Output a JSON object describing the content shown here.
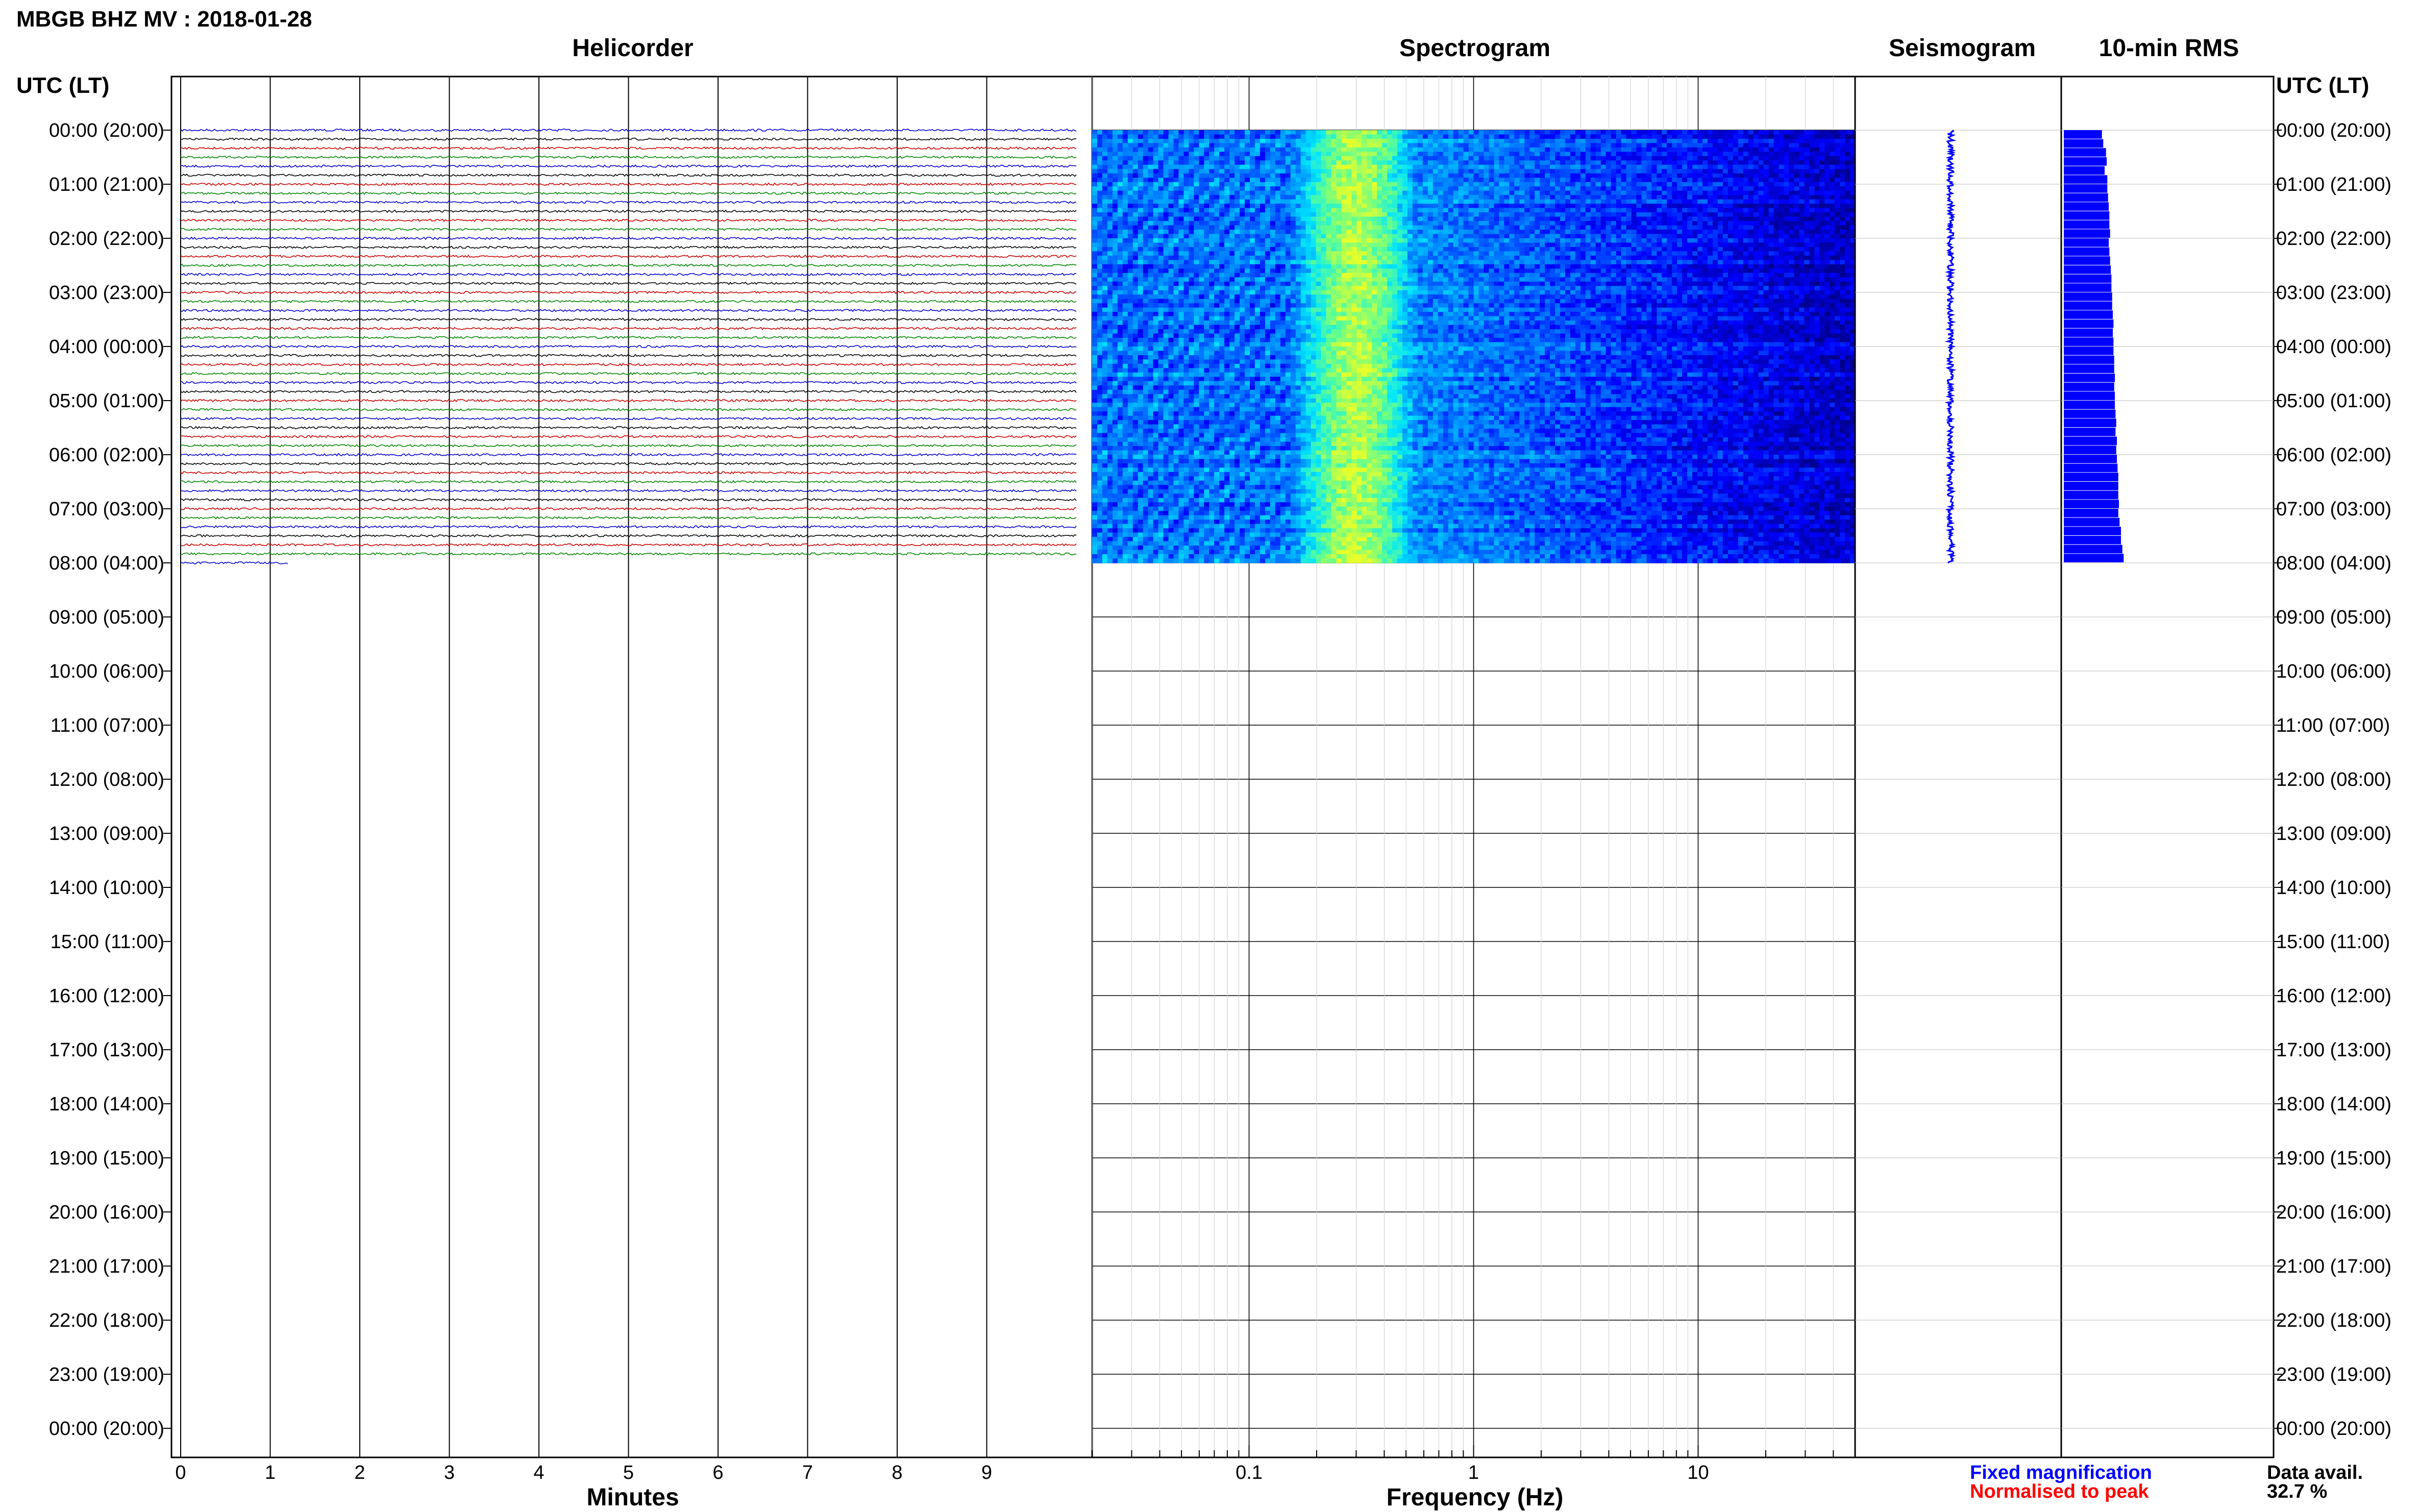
{
  "title": "MBGB BHZ MV : 2018-01-28",
  "chart_data": [
    {
      "type": "line",
      "panel": "helicorder",
      "title": "Helicorder",
      "xlabel": "Minutes",
      "x_ticks": [
        "0",
        "1",
        "2",
        "3",
        "4",
        "5",
        "6",
        "7",
        "8",
        "9"
      ],
      "xlim": [
        0,
        10
      ],
      "left_axis_label": "UTC (LT)",
      "right_axis_label": "UTC (LT)",
      "hour_labels": [
        "00:00 (20:00)",
        "01:00 (21:00)",
        "02:00 (22:00)",
        "03:00 (23:00)",
        "04:00 (00:00)",
        "05:00 (01:00)",
        "06:00 (02:00)",
        "07:00 (03:00)",
        "08:00 (04:00)",
        "09:00 (05:00)",
        "10:00 (06:00)",
        "11:00 (07:00)",
        "12:00 (08:00)",
        "13:00 (09:00)",
        "14:00 (10:00)",
        "15:00 (11:00)",
        "16:00 (12:00)",
        "17:00 (13:00)",
        "18:00 (14:00)",
        "19:00 (15:00)",
        "20:00 (16:00)",
        "21:00 (17:00)",
        "22:00 (18:00)",
        "23:00 (19:00)",
        "00:00 (20:00)"
      ],
      "trace_rows_per_hour": 6,
      "full_trace_rows": 48,
      "last_partial_trace_minutes": 1.2,
      "trace_colors": [
        "#000000",
        "#cc0000",
        "#008800",
        "#0000cc"
      ]
    },
    {
      "type": "heatmap",
      "panel": "spectrogram",
      "title": "Spectrogram",
      "xlabel": "Frequency (Hz)",
      "x_scale": "log",
      "xlim": [
        0.02,
        50
      ],
      "x_ticks": [
        "0.1",
        "1",
        "10"
      ],
      "data_hours": [
        0,
        8
      ],
      "energy_peak_hz": 0.3,
      "colormap": [
        "#00008b",
        "#0000ff",
        "#0080ff",
        "#00e5ff",
        "#60ff90",
        "#e6ff2a"
      ]
    },
    {
      "type": "line",
      "panel": "seismogram",
      "title": "Seismogram",
      "data_hours": [
        0,
        8
      ],
      "color": "#0000ff"
    },
    {
      "type": "bar",
      "panel": "rms",
      "title": "10-min RMS",
      "orientation": "horizontal",
      "color": "#0000ff",
      "values": [
        0.56,
        0.58,
        0.62,
        0.63,
        0.6,
        0.64,
        0.64,
        0.65,
        0.66,
        0.67,
        0.67,
        0.68,
        0.66,
        0.67,
        0.68,
        0.69,
        0.7,
        0.7,
        0.71,
        0.71,
        0.72,
        0.73,
        0.72,
        0.73,
        0.73,
        0.74,
        0.74,
        0.75,
        0.74,
        0.75,
        0.75,
        0.76,
        0.77,
        0.76,
        0.78,
        0.77,
        0.78,
        0.79,
        0.8,
        0.8,
        0.8,
        0.81,
        0.8,
        0.82,
        0.84,
        0.84,
        0.86,
        0.88
      ],
      "xlim": [
        0,
        3
      ]
    }
  ],
  "legend": {
    "fixed_label": "Fixed magnification",
    "fixed_color": "#0000ff",
    "normalised_label": "Normalised to peak",
    "normalised_color": "#ff0000"
  },
  "data_avail": {
    "label": "Data avail.",
    "value": "32.7 %"
  }
}
